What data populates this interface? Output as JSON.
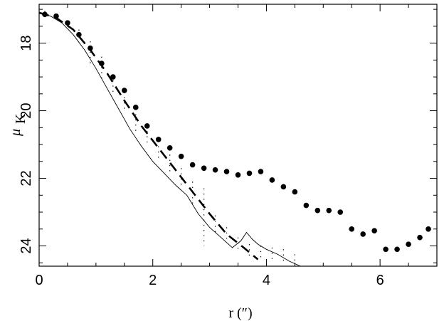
{
  "chart_data": {
    "type": "scatter",
    "xlabel": "r (″)",
    "ylabel_main": "μ",
    "ylabel_sub": "K",
    "xlim": [
      0,
      7.0
    ],
    "ylim": [
      24.6,
      16.85
    ],
    "y_inverted": true,
    "grid": false,
    "xticks": [
      0,
      2,
      4,
      6
    ],
    "yticks": [
      18,
      20,
      22,
      24
    ],
    "series": [
      {
        "style": "filled-circles",
        "x": [
          0.1,
          0.3,
          0.5,
          0.7,
          0.9,
          1.1,
          1.3,
          1.5,
          1.7,
          1.9,
          2.1,
          2.3,
          2.5,
          2.7,
          2.9,
          3.1,
          3.3,
          3.5,
          3.7,
          3.9,
          4.1,
          4.3,
          4.5,
          4.7,
          4.9,
          5.1,
          5.3,
          5.5,
          5.7,
          5.9,
          6.1,
          6.3,
          6.5,
          6.7,
          6.85
        ],
        "y": [
          17.15,
          17.2,
          17.4,
          17.75,
          18.15,
          18.6,
          19.0,
          19.4,
          19.9,
          20.45,
          20.85,
          21.1,
          21.35,
          21.6,
          21.7,
          21.75,
          21.8,
          21.9,
          21.85,
          21.8,
          22.05,
          22.25,
          22.4,
          22.8,
          22.95,
          22.95,
          23.0,
          23.5,
          23.65,
          23.55,
          24.1,
          24.1,
          23.95,
          23.75,
          23.5
        ]
      },
      {
        "style": "dashed-line",
        "x": [
          0.0,
          0.3,
          0.6,
          0.9,
          1.2,
          1.5,
          1.8,
          2.1,
          2.4,
          2.7,
          3.0,
          3.3,
          3.6,
          3.85
        ],
        "y": [
          17.1,
          17.25,
          17.6,
          18.2,
          18.9,
          19.7,
          20.45,
          21.1,
          21.75,
          22.4,
          23.05,
          23.65,
          24.05,
          24.4
        ]
      },
      {
        "style": "thin-line",
        "x": [
          0.0,
          0.2,
          0.4,
          0.6,
          0.8,
          1.0,
          1.2,
          1.4,
          1.6,
          1.8,
          2.0,
          2.2,
          2.4,
          2.6,
          2.8,
          3.0,
          3.2,
          3.4,
          3.55,
          3.65,
          3.75,
          3.85,
          4.0,
          4.2,
          4.4,
          4.6
        ],
        "y": [
          17.1,
          17.2,
          17.4,
          17.75,
          18.2,
          18.75,
          19.35,
          19.95,
          20.55,
          21.05,
          21.5,
          21.85,
          22.2,
          22.5,
          23.05,
          23.45,
          23.75,
          24.05,
          23.85,
          23.6,
          23.8,
          23.95,
          24.1,
          24.25,
          24.45,
          24.6
        ]
      },
      {
        "style": "dotted",
        "x": [
          0.1,
          0.7,
          0.9,
          1.1,
          1.3,
          1.5,
          1.7,
          1.9,
          2.1,
          2.3,
          2.5,
          2.7,
          2.9,
          3.1,
          3.3,
          3.5,
          3.7,
          3.9,
          4.1,
          4.3,
          4.5
        ],
        "y_top": [
          17.05,
          17.6,
          17.95,
          18.4,
          18.95,
          19.45,
          19.95,
          20.45,
          20.9,
          21.3,
          21.7,
          22.1,
          22.3,
          23.1,
          23.45,
          23.75,
          23.95,
          24.0,
          24.05,
          24.1,
          24.25
        ],
        "y_bottom": [
          17.35,
          17.9,
          18.65,
          19.1,
          19.55,
          20.0,
          20.6,
          21.05,
          21.4,
          21.8,
          22.3,
          22.85,
          24.0,
          23.65,
          23.85,
          24.15,
          24.3,
          24.4,
          24.45,
          24.5,
          24.55
        ]
      }
    ]
  }
}
